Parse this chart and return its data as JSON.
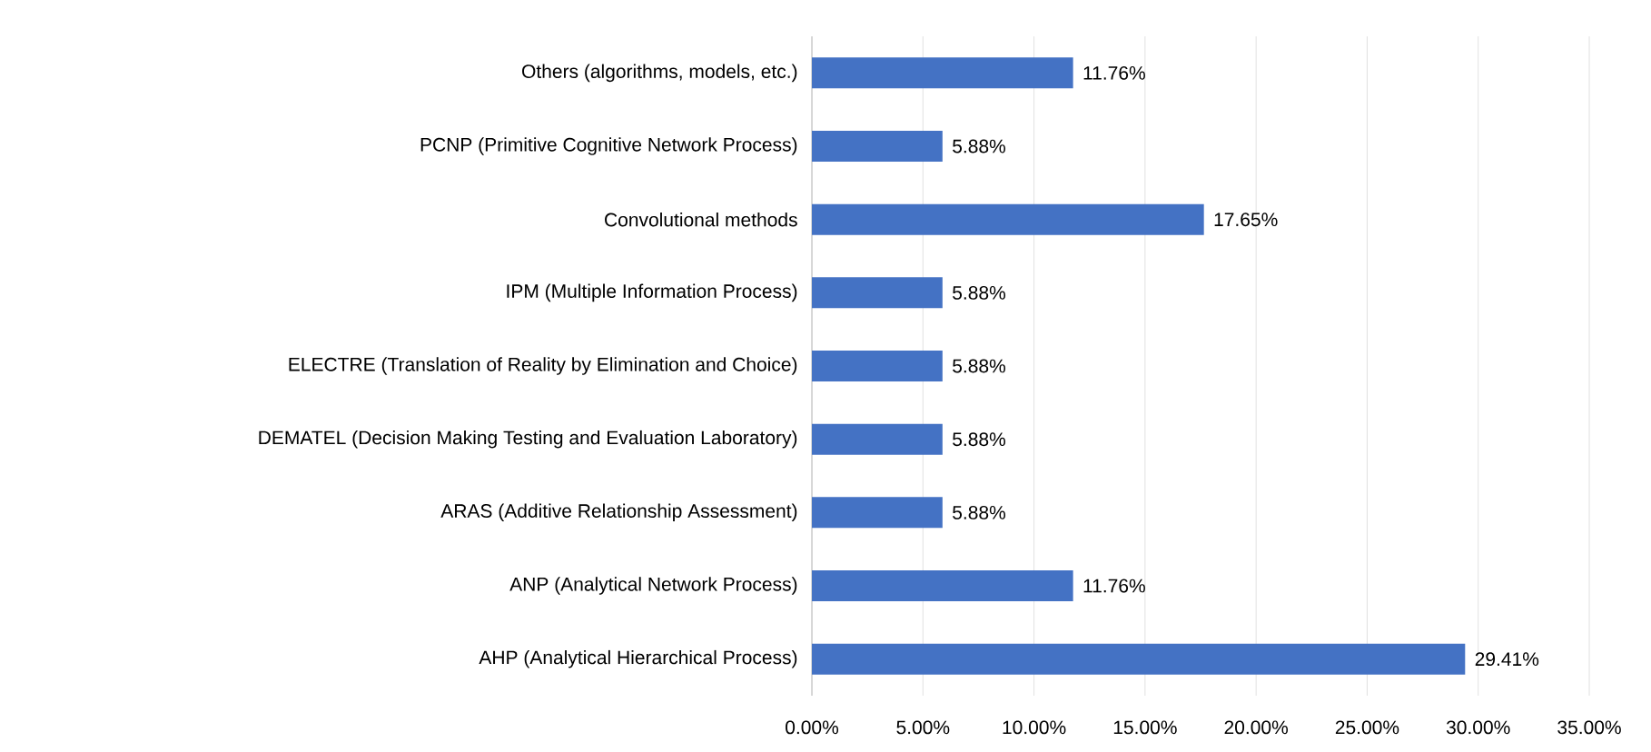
{
  "chart_data": {
    "type": "bar",
    "orientation": "horizontal",
    "categories": [
      "Others (algorithms, models, etc.)",
      "PCNP (Primitive Cognitive Network Process)",
      "Convolutional methods",
      "IPM (Multiple Information Process)",
      "ELECTRE (Translation of Reality by Elimination and Choice)",
      "DEMATEL (Decision Making Testing and Evaluation Laboratory)",
      "ARAS (Additive Relationship Assessment)",
      "ANP (Analytical Network Process)",
      "AHP (Analytical Hierarchical Process)"
    ],
    "values": [
      11.76,
      5.88,
      17.65,
      5.88,
      5.88,
      5.88,
      5.88,
      11.76,
      29.41
    ],
    "value_labels": [
      "11.76%",
      "5.88%",
      "17.65%",
      "5.88%",
      "5.88%",
      "5.88%",
      "5.88%",
      "11.76%",
      "29.41%"
    ],
    "color": "#4472c4",
    "xlim": [
      0,
      35
    ],
    "xticks": [
      {
        "value": 0,
        "label": "0.00%"
      },
      {
        "value": 5,
        "label": "5.00%"
      },
      {
        "value": 10,
        "label": "10.00%"
      },
      {
        "value": 15,
        "label": "15.00%"
      },
      {
        "value": 20,
        "label": "20.00%"
      },
      {
        "value": 25,
        "label": "25.00%"
      },
      {
        "value": 30,
        "label": "30.00%"
      },
      {
        "value": 35,
        "label": "35.00%"
      }
    ],
    "grid": "x"
  }
}
